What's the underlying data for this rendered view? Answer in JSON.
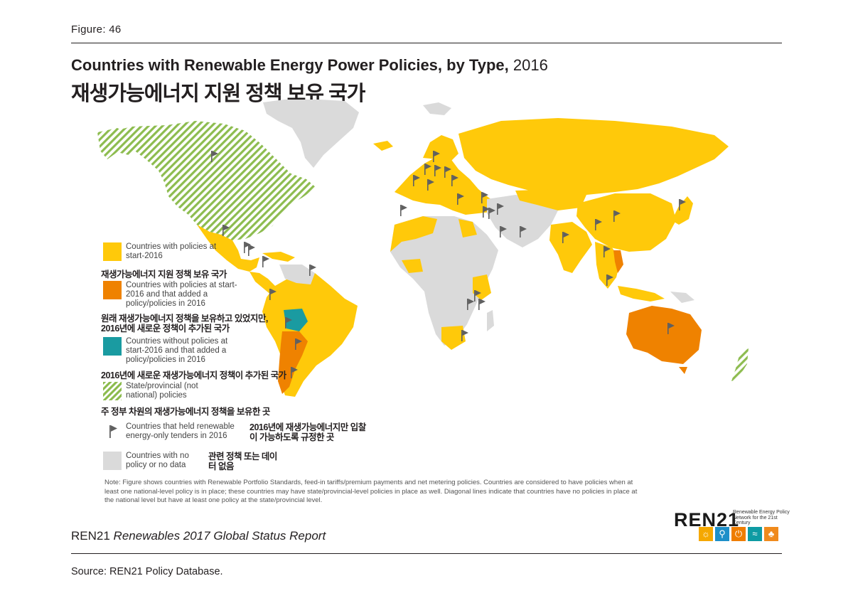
{
  "figure_label": "Figure: 46",
  "title_en": "Countries with Renewable Energy Power Policies, by Type,",
  "title_year": "2016",
  "title_ko": "재생가능에너지 지원 정책 보유 국가",
  "colors": {
    "policy": "#ffc90a",
    "added": "#ef8200",
    "new": "#1a9ba1",
    "hatch": "#8dbc4f",
    "none": "#dadada",
    "flag": "#606060"
  },
  "legend": [
    {
      "key": "policy",
      "en": "Countries with policies at start-2016",
      "ko": "재생가능에너지 지원 정책 보유 국가"
    },
    {
      "key": "added",
      "en": "Countries with policies at start-2016 and that added a policy/policies in 2016",
      "ko": "원래 재생가능에너지 정책을 보유하고 있었지만, 2016년에 새로운 정책이 추가된 국가"
    },
    {
      "key": "new",
      "en": "Countries without policies at start-2016 and that added a policy/policies in 2016",
      "ko": "2016년에 새로운 재생가능에너지 정책이 추가된 국가"
    },
    {
      "key": "hatch",
      "en": "State/provincial (not national) policies",
      "ko": "주 정부 차원의 재생가능에너지 정책을 보유한 곳"
    },
    {
      "key": "flag",
      "en": "Countries that held renewable energy-only tenders in 2016",
      "ko": "2016년에 재생가능에너지만 입찰이 가능하도록 규정한 곳"
    },
    {
      "key": "none",
      "en": "Countries with no policy or no data",
      "ko": "관련 정책 또는 데이터 없음"
    }
  ],
  "note": "Note: Figure shows countries with Renewable Portfolio Standards, feed-in tariffs/premium payments and net metering policies. Countries are considered to have policies when at least one national-level policy is in place; these countries may have state/provincial-level policies in place as well. Diagonal lines indicate that countries have no policies in place at the national level but have at least one policy at the state/provincial level.",
  "report_org": "REN21",
  "report_title": "Renewables 2017 Global Status Report",
  "source": "Source: REN21 Policy Database.",
  "logo": {
    "name": "REN21",
    "tagline": "Renewable Energy Policy Network for the 21st Century",
    "icons": [
      "sun-icon",
      "wind-icon",
      "power-icon",
      "wave-icon",
      "leaf-icon"
    ]
  }
}
